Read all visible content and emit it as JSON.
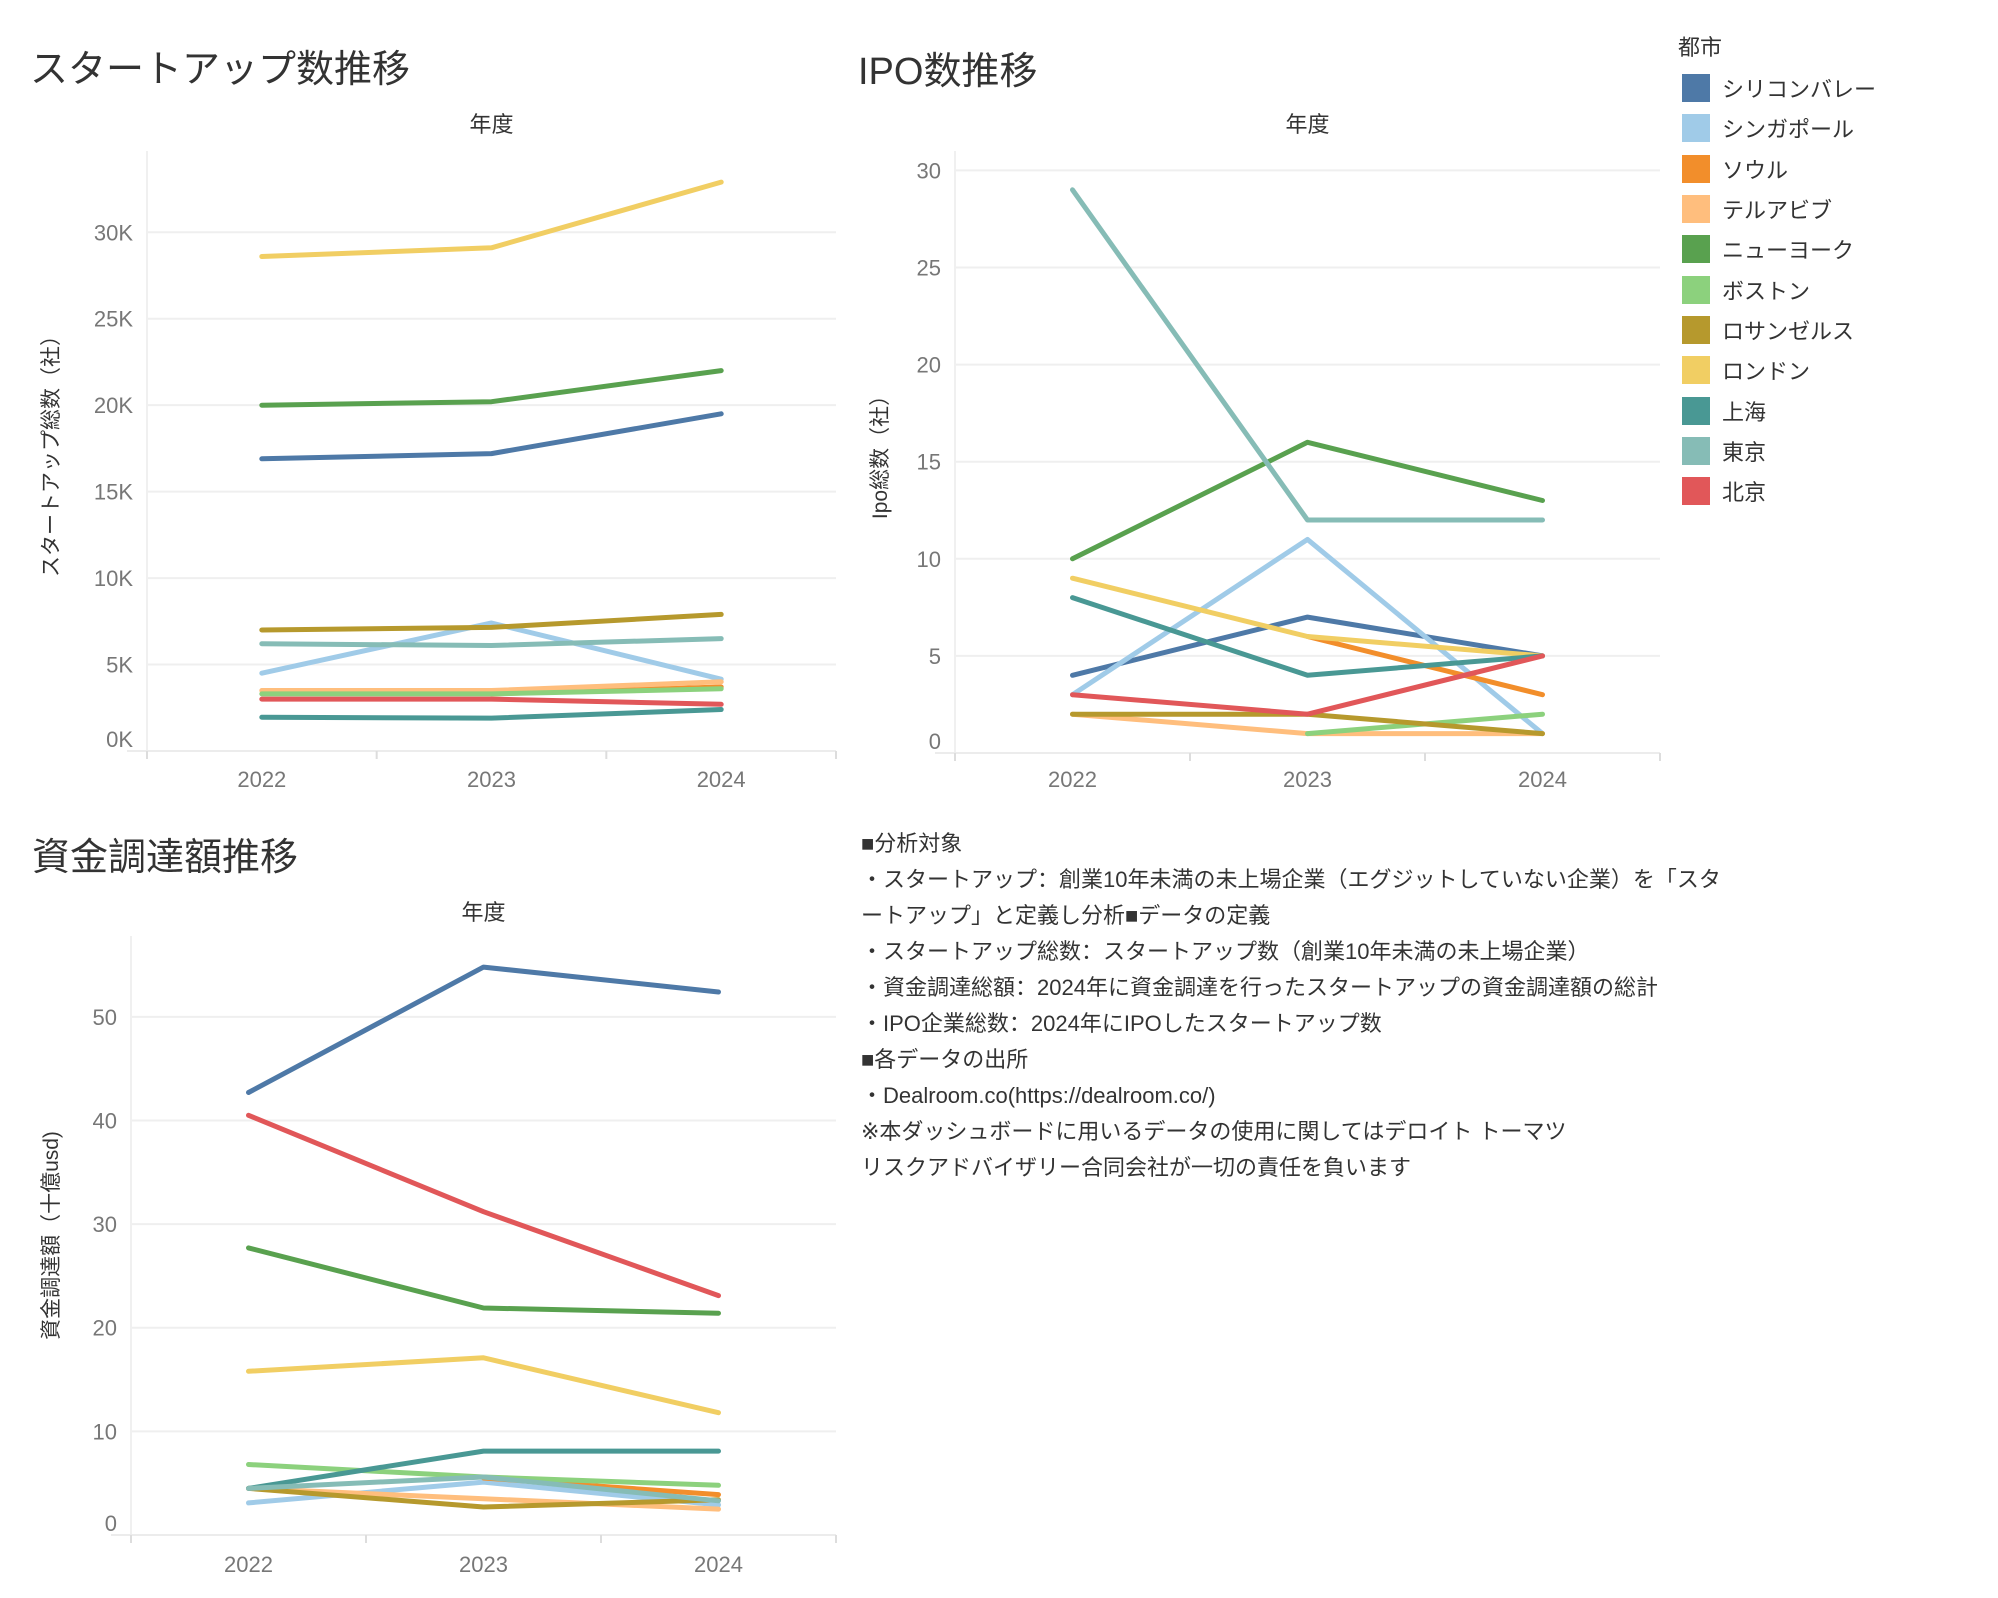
{
  "legend": {
    "title": "都市",
    "items": [
      {
        "name": "シリコンバレー",
        "color": "#4e79a7"
      },
      {
        "name": "シンガポール",
        "color": "#a0cbe8"
      },
      {
        "name": "ソウル",
        "color": "#f28e2b"
      },
      {
        "name": "テルアビブ",
        "color": "#ffbe7d"
      },
      {
        "name": "ニューヨーク",
        "color": "#59a14f"
      },
      {
        "name": "ボストン",
        "color": "#8cd17d"
      },
      {
        "name": "ロサンゼルス",
        "color": "#b6992d"
      },
      {
        "name": "ロンドン",
        "color": "#f1ce63"
      },
      {
        "name": "上海",
        "color": "#499894"
      },
      {
        "name": "東京",
        "color": "#86bcb6"
      },
      {
        "name": "北京",
        "color": "#e15759"
      }
    ]
  },
  "notes": {
    "lines": [
      "■分析対象",
      "・スタートアップ：創業10年未満の未上場企業（エグジットしていない企業）を「スタ",
      "ートアップ」と定義し分析■データの定義",
      "・スタートアップ総数：スタートアップ数（創業10年未満の未上場企業）",
      "・資金調達総額：2024年に資金調達を行ったスタートアップの資金調達額の総計",
      "・IPO企業総数：2024年にIPOしたスタートアップ数",
      "■各データの出所",
      "・Dealroom.co(https://dealroom.co/)",
      "※本ダッシュボードに用いるデータの使用に関してはデロイト トーマツ",
      "リスクアドバイザリー合同会社が一切の責任を負います"
    ]
  },
  "chart_data": [
    {
      "type": "line",
      "title": "スタートアップ数推移",
      "xlabel": "年度",
      "ylabel": "スタートアップ総数（社）",
      "categories": [
        "2022",
        "2023",
        "2024"
      ],
      "ylim": [
        0,
        34700
      ],
      "yticks": [
        0,
        5000,
        10000,
        15000,
        20000,
        25000,
        30000
      ],
      "ytick_labels": [
        "0K",
        "5K",
        "10K",
        "15K",
        "20K",
        "25K",
        "30K"
      ],
      "grid": true,
      "series": [
        {
          "name": "シリコンバレー",
          "values": [
            16900,
            17200,
            19500
          ]
        },
        {
          "name": "シンガポール",
          "values": [
            4500,
            7400,
            4150
          ]
        },
        {
          "name": "ソウル",
          "values": [
            null,
            3300,
            3700
          ]
        },
        {
          "name": "テルアビブ",
          "values": [
            3500,
            3500,
            4000
          ]
        },
        {
          "name": "ニューヨーク",
          "values": [
            20000,
            20200,
            22000
          ]
        },
        {
          "name": "ボストン",
          "values": [
            3300,
            3300,
            3600
          ]
        },
        {
          "name": "ロサンゼルス",
          "values": [
            7000,
            7150,
            7900
          ]
        },
        {
          "name": "ロンドン",
          "values": [
            28600,
            29100,
            32900
          ]
        },
        {
          "name": "上海",
          "values": [
            1950,
            1900,
            2400
          ]
        },
        {
          "name": "東京",
          "values": [
            6200,
            6100,
            6500
          ]
        },
        {
          "name": "北京",
          "values": [
            3000,
            3000,
            2700
          ]
        }
      ]
    },
    {
      "type": "line",
      "title": "IPO数推移",
      "xlabel": "年度",
      "ylabel": "Ipo総数（社）",
      "categories": [
        "2022",
        "2023",
        "2024"
      ],
      "ylim": [
        0,
        31
      ],
      "yticks": [
        0,
        5,
        10,
        15,
        20,
        25,
        30
      ],
      "ytick_labels": [
        "0",
        "5",
        "10",
        "15",
        "20",
        "25",
        "30"
      ],
      "grid": true,
      "series": [
        {
          "name": "シリコンバレー",
          "values": [
            4,
            7,
            5
          ]
        },
        {
          "name": "シンガポール",
          "values": [
            3,
            11,
            1
          ]
        },
        {
          "name": "ソウル",
          "values": [
            null,
            6,
            3
          ]
        },
        {
          "name": "テルアビブ",
          "values": [
            2,
            1,
            1
          ]
        },
        {
          "name": "ニューヨーク",
          "values": [
            10,
            16,
            13
          ]
        },
        {
          "name": "ボストン",
          "values": [
            null,
            1,
            2
          ]
        },
        {
          "name": "ロサンゼルス",
          "values": [
            2,
            2,
            1
          ]
        },
        {
          "name": "ロンドン",
          "values": [
            9,
            6,
            5
          ]
        },
        {
          "name": "上海",
          "values": [
            8,
            4,
            5
          ]
        },
        {
          "name": "東京",
          "values": [
            29,
            12,
            12
          ]
        },
        {
          "name": "北京",
          "values": [
            3,
            2,
            5
          ]
        }
      ]
    },
    {
      "type": "line",
      "title": "資金調達額推移",
      "xlabel": "年度",
      "ylabel": "資金調達額（十億usd)",
      "categories": [
        "2022",
        "2023",
        "2024"
      ],
      "ylim": [
        0,
        57.8
      ],
      "yticks": [
        0,
        10,
        20,
        30,
        40,
        50
      ],
      "ytick_labels": [
        "0",
        "10",
        "20",
        "30",
        "40",
        "50"
      ],
      "grid": true,
      "series": [
        {
          "name": "シリコンバレー",
          "values": [
            42.7,
            54.8,
            52.4
          ]
        },
        {
          "name": "シンガポール",
          "values": [
            3.1,
            5.1,
            2.9
          ]
        },
        {
          "name": "ソウル",
          "values": [
            null,
            5.5,
            3.9
          ]
        },
        {
          "name": "テルアビブ",
          "values": [
            4.5,
            3.5,
            2.5
          ]
        },
        {
          "name": "ニューヨーク",
          "values": [
            27.7,
            21.9,
            21.4
          ]
        },
        {
          "name": "ボストン",
          "values": [
            6.8,
            5.6,
            4.8
          ]
        },
        {
          "name": "ロサンゼルス",
          "values": [
            4.5,
            2.7,
            3.4
          ]
        },
        {
          "name": "ロンドン",
          "values": [
            15.8,
            17.1,
            11.8
          ]
        },
        {
          "name": "上海",
          "values": [
            4.5,
            8.1,
            8.1
          ]
        },
        {
          "name": "東京",
          "values": [
            4.5,
            5.6,
            3.3
          ]
        },
        {
          "name": "北京",
          "values": [
            40.5,
            31.2,
            23.1
          ]
        }
      ]
    }
  ]
}
